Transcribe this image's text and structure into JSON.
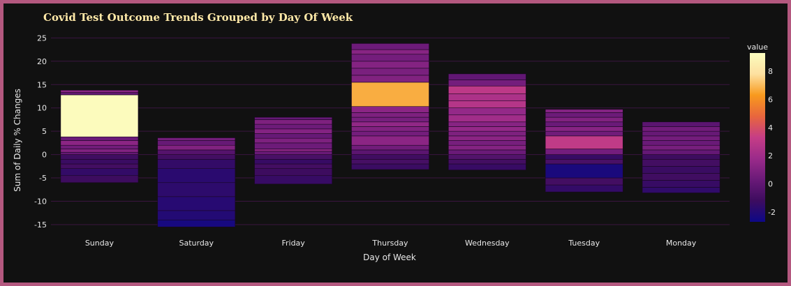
{
  "chart_data": {
    "type": "bar",
    "title": "Covid Test Outcome Trends Grouped by Day Of Week",
    "xlabel": "Day of Week",
    "ylabel": "Sum of Daily % Changes",
    "categories": [
      "Sunday",
      "Saturday",
      "Friday",
      "Thursday",
      "Wednesday",
      "Tuesday",
      "Monday"
    ],
    "ylim": [
      -16.5,
      25.5
    ],
    "yticks": [
      -15,
      -10,
      -5,
      0,
      5,
      10,
      15,
      20,
      25
    ],
    "grid": true,
    "colorbar": {
      "title": "value",
      "range": [
        -2.7,
        9.3
      ],
      "ticks": [
        -2,
        0,
        2,
        4,
        6,
        8
      ],
      "colorscale": [
        "#0d0887",
        "#3d0c5f",
        "#6a1a78",
        "#9b2b8a",
        "#c63d86",
        "#e8663d",
        "#f89a1e",
        "#fde0a0",
        "#fcfdbf"
      ]
    },
    "series": [
      {
        "category": "Sunday",
        "segments": [
          [
            -6,
            -4.5,
            -1.2
          ],
          [
            -4.5,
            -3,
            -1.5
          ],
          [
            -3,
            -2,
            -1.0
          ],
          [
            -2,
            -1,
            -1.3
          ],
          [
            -1,
            0,
            -1.1
          ],
          [
            0,
            0.5,
            0.2
          ],
          [
            0.5,
            1.2,
            1.0
          ],
          [
            1.2,
            2,
            0.5
          ],
          [
            2,
            3,
            1.3
          ],
          [
            3,
            3.8,
            0.3
          ],
          [
            3.8,
            12.8,
            9.2
          ],
          [
            12.8,
            13.3,
            0.0
          ],
          [
            13.3,
            13.8,
            1.2
          ]
        ]
      },
      {
        "category": "Saturday",
        "segments": [
          [
            -15.5,
            -14,
            -2.4
          ],
          [
            -14,
            -12,
            -2.0
          ],
          [
            -12,
            -9,
            -1.9
          ],
          [
            -9,
            -6,
            -1.7
          ],
          [
            -6,
            -3,
            -1.8
          ],
          [
            -3,
            -1,
            -1.5
          ],
          [
            -1,
            0,
            -1.0
          ],
          [
            0,
            1,
            -0.4
          ],
          [
            1,
            2,
            1.0
          ],
          [
            2,
            3,
            0.2
          ],
          [
            3,
            3.6,
            0.6
          ]
        ]
      },
      {
        "category": "Friday",
        "segments": [
          [
            -6.3,
            -4.5,
            -1.4
          ],
          [
            -4.5,
            -3,
            -1.2
          ],
          [
            -3,
            -2,
            -1.0
          ],
          [
            -2,
            -1,
            -1.4
          ],
          [
            -1,
            0,
            -0.8
          ],
          [
            0,
            0.7,
            0.3
          ],
          [
            0.7,
            1.2,
            1.4
          ],
          [
            1.2,
            2.5,
            0.4
          ],
          [
            2.5,
            3.5,
            0.9
          ],
          [
            3.5,
            4.5,
            0.2
          ],
          [
            4.5,
            5.5,
            1.1
          ],
          [
            5.5,
            6.5,
            0.4
          ],
          [
            6.5,
            7.5,
            0.9
          ],
          [
            7.5,
            8.0,
            0.1
          ]
        ]
      },
      {
        "category": "Thursday",
        "segments": [
          [
            -3.2,
            -2,
            -1.3
          ],
          [
            -2,
            -1,
            -0.9
          ],
          [
            -1,
            0,
            -1.1
          ],
          [
            0,
            1,
            -0.2
          ],
          [
            1,
            2,
            0.5
          ],
          [
            2,
            4,
            1.3
          ],
          [
            4,
            5,
            0.6
          ],
          [
            5,
            6,
            1.0
          ],
          [
            6,
            7,
            1.5
          ],
          [
            7,
            8,
            0.7
          ],
          [
            8,
            9,
            0.9
          ],
          [
            9,
            10.3,
            1.3
          ],
          [
            10.3,
            15.5,
            6.7
          ],
          [
            15.5,
            17,
            1.0
          ],
          [
            17,
            18.5,
            0.8
          ],
          [
            18.5,
            20,
            1.1
          ],
          [
            20,
            21.5,
            0.6
          ],
          [
            21.5,
            22.5,
            1.2
          ],
          [
            22.5,
            23.8,
            0.4
          ]
        ]
      },
      {
        "category": "Wednesday",
        "segments": [
          [
            -3.3,
            -2,
            -1.4
          ],
          [
            -2,
            -1,
            -1.0
          ],
          [
            -1,
            0,
            -0.5
          ],
          [
            0,
            1,
            0.3
          ],
          [
            1,
            2,
            1.1
          ],
          [
            2,
            3,
            0.7
          ],
          [
            3,
            4,
            1.3
          ],
          [
            4,
            5,
            0.9
          ],
          [
            5,
            6,
            1.6
          ],
          [
            6,
            7,
            1.2
          ],
          [
            7,
            8.5,
            2.0
          ],
          [
            8.5,
            10,
            1.6
          ],
          [
            10,
            11.5,
            2.7
          ],
          [
            11.5,
            13,
            2.4
          ],
          [
            13,
            14.7,
            3.0
          ],
          [
            14.7,
            16,
            0.6
          ],
          [
            16,
            17.3,
            0.0
          ]
        ]
      },
      {
        "category": "Tuesday",
        "segments": [
          [
            -8,
            -6.5,
            -1.5
          ],
          [
            -6.5,
            -5,
            -1.0
          ],
          [
            -5,
            -2,
            -2.3
          ],
          [
            -2,
            -1,
            -0.8
          ],
          [
            -1,
            0,
            -1.4
          ],
          [
            0,
            1.2,
            0.6
          ],
          [
            1.2,
            4,
            3.1
          ],
          [
            4,
            5,
            0.5
          ],
          [
            5,
            6,
            1.2
          ],
          [
            6,
            7,
            0.3
          ],
          [
            7,
            8,
            1.0
          ],
          [
            8,
            9,
            0.4
          ],
          [
            9,
            9.7,
            1.1
          ]
        ]
      },
      {
        "category": "Monday",
        "segments": [
          [
            -8.2,
            -7,
            -1.6
          ],
          [
            -7,
            -5.5,
            -1.4
          ],
          [
            -5.5,
            -4,
            -1.1
          ],
          [
            -4,
            -2.5,
            -1.3
          ],
          [
            -2.5,
            -1,
            -1.0
          ],
          [
            -1,
            0,
            -1.2
          ],
          [
            0,
            1,
            0.1
          ],
          [
            1,
            2,
            0.7
          ],
          [
            2,
            3,
            0.3
          ],
          [
            3,
            4,
            0.6
          ],
          [
            4,
            5,
            0.2
          ],
          [
            5,
            6,
            0.5
          ],
          [
            6,
            7,
            -0.2
          ]
        ]
      }
    ]
  }
}
